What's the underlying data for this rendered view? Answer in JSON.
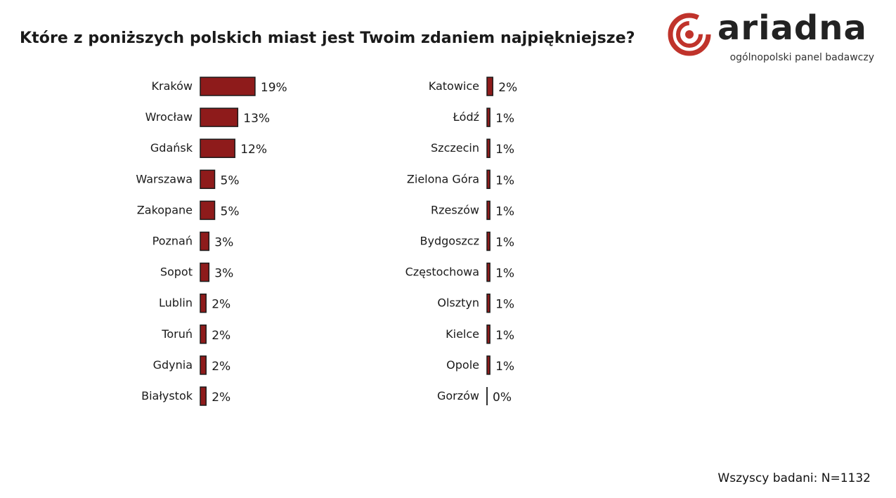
{
  "title": "Które z poniższych polskich miast jest Twoim zdaniem najpiękniejsze?",
  "logo": {
    "name": "ariadna",
    "tagline": "ogólnopolski panel badawczy",
    "icon": "ariadna-spiral-icon",
    "color": "#c0332b"
  },
  "footer": "Wszyscy badani: N=1132",
  "colors": {
    "bar": "#8e1b1b",
    "bar_stroke": "#1a1a1a"
  },
  "chart_data": [
    {
      "type": "bar",
      "orientation": "horizontal",
      "categories": [
        "Kraków",
        "Wrocław",
        "Gdańsk",
        "Warszawa",
        "Zakopane",
        "Poznań",
        "Sopot",
        "Lublin",
        "Toruń",
        "Gdynia",
        "Białystok"
      ],
      "values": [
        19,
        13,
        12,
        5,
        5,
        3,
        3,
        2,
        2,
        2,
        2
      ],
      "value_labels": [
        "19%",
        "13%",
        "12%",
        "5%",
        "5%",
        "3%",
        "3%",
        "2%",
        "2%",
        "2%",
        "2%"
      ],
      "unit": "%"
    },
    {
      "type": "bar",
      "orientation": "horizontal",
      "categories": [
        "Katowice",
        "Łódź",
        "Szczecin",
        "Zielona Góra",
        "Rzeszów",
        "Bydgoszcz",
        "Częstochowa",
        "Olsztyn",
        "Kielce",
        "Opole",
        "Gorzów"
      ],
      "values": [
        2,
        1,
        1,
        1,
        1,
        1,
        1,
        1,
        1,
        1,
        0
      ],
      "value_labels": [
        "2%",
        "1%",
        "1%",
        "1%",
        "1%",
        "1%",
        "1%",
        "1%",
        "1%",
        "1%",
        "0%"
      ],
      "unit": "%"
    }
  ]
}
